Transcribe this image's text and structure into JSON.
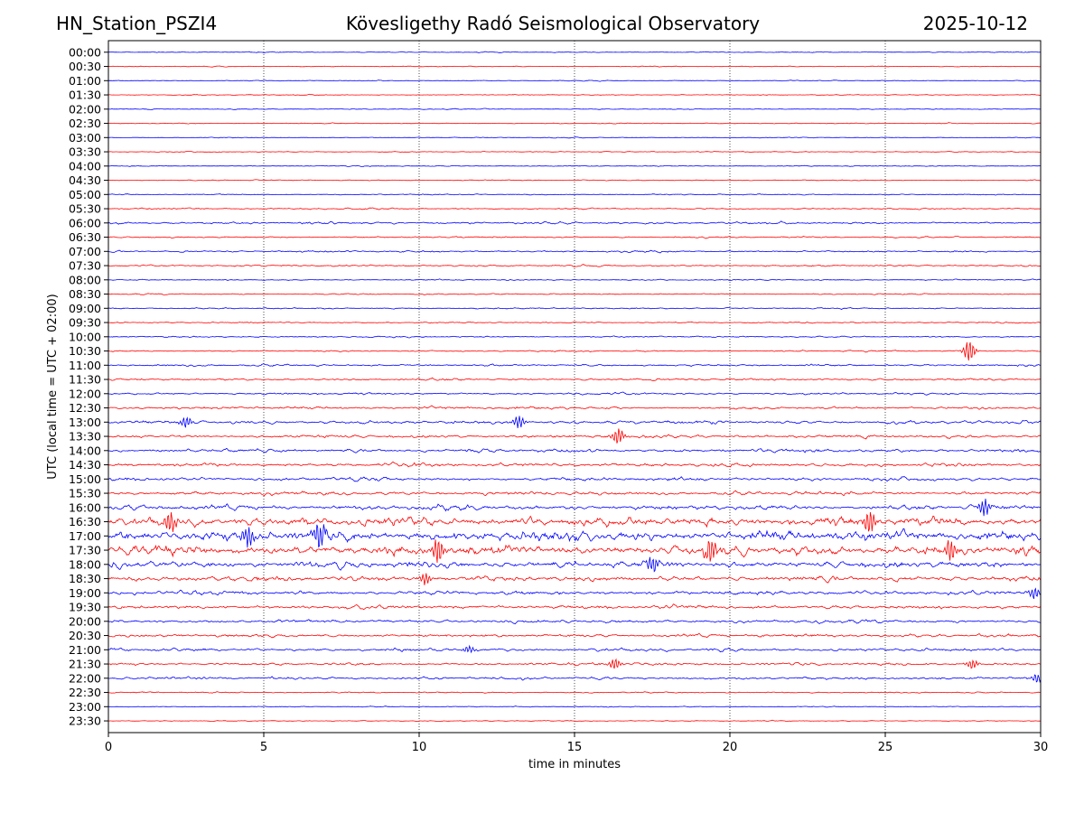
{
  "header": {
    "station": "HN_Station_PSZI4",
    "observatory": "Kövesligethy Radó Seismological Observatory",
    "date": "2025-10-12"
  },
  "chart_data": {
    "type": "line",
    "title": "Kövesligethy Radó Seismological Observatory",
    "xlabel": "time in minutes",
    "ylabel": "UTC (local time = UTC + 02:00)",
    "xlim": [
      0,
      30
    ],
    "x_ticks": [
      "0",
      "5",
      "10",
      "15",
      "20",
      "25",
      "30"
    ],
    "grid": "vertical dotted at 5-minute intervals",
    "colors": {
      "even": "#0000ff",
      "odd": "#ff0000"
    },
    "rows": [
      "00:00",
      "00:30",
      "01:00",
      "01:30",
      "02:00",
      "02:30",
      "03:00",
      "03:30",
      "04:00",
      "04:30",
      "05:00",
      "05:30",
      "06:00",
      "06:30",
      "07:00",
      "07:30",
      "08:00",
      "08:30",
      "09:00",
      "09:30",
      "10:00",
      "10:30",
      "11:00",
      "11:30",
      "12:00",
      "12:30",
      "13:00",
      "13:30",
      "14:00",
      "14:30",
      "15:00",
      "15:30",
      "16:00",
      "16:30",
      "17:00",
      "17:30",
      "18:00",
      "18:30",
      "19:00",
      "19:30",
      "20:00",
      "20:30",
      "21:00",
      "21:30",
      "22:00",
      "22:30",
      "23:00",
      "23:30"
    ],
    "amplitude": [
      0.8,
      0.8,
      0.8,
      0.8,
      0.8,
      0.9,
      0.8,
      0.8,
      0.9,
      0.9,
      1.0,
      1.4,
      2.2,
      1.4,
      1.8,
      1.6,
      1.2,
      1.2,
      1.2,
      1.2,
      1.4,
      1.3,
      2.0,
      2.0,
      2.0,
      2.5,
      3.2,
      3.0,
      3.4,
      3.4,
      3.4,
      3.6,
      4.5,
      8.5,
      9.5,
      9.0,
      6.5,
      5.0,
      4.0,
      3.4,
      3.2,
      3.0,
      3.0,
      2.6,
      2.6,
      1.2,
      0.9,
      0.9
    ],
    "events": [
      {
        "row": "10:30",
        "minute": 27.7,
        "amp": 12
      },
      {
        "row": "13:30",
        "minute": 16.4,
        "amp": 9
      },
      {
        "row": "13:00",
        "minute": 13.2,
        "amp": 7
      },
      {
        "row": "13:00",
        "minute": 2.5,
        "amp": 6
      },
      {
        "row": "16:00",
        "minute": 28.2,
        "amp": 9
      },
      {
        "row": "16:30",
        "minute": 2.0,
        "amp": 12
      },
      {
        "row": "16:30",
        "minute": 24.5,
        "amp": 13
      },
      {
        "row": "17:00",
        "minute": 6.8,
        "amp": 14
      },
      {
        "row": "17:00",
        "minute": 4.5,
        "amp": 12
      },
      {
        "row": "17:30",
        "minute": 10.6,
        "amp": 14
      },
      {
        "row": "17:30",
        "minute": 19.4,
        "amp": 14
      },
      {
        "row": "17:30",
        "minute": 27.1,
        "amp": 12
      },
      {
        "row": "18:00",
        "minute": 17.5,
        "amp": 9
      },
      {
        "row": "18:30",
        "minute": 10.2,
        "amp": 6
      },
      {
        "row": "19:00",
        "minute": 29.8,
        "amp": 6
      },
      {
        "row": "21:00",
        "minute": 11.6,
        "amp": 4
      },
      {
        "row": "21:30",
        "minute": 16.3,
        "amp": 6
      },
      {
        "row": "21:30",
        "minute": 27.8,
        "amp": 5
      },
      {
        "row": "22:00",
        "minute": 29.9,
        "amp": 5
      }
    ]
  }
}
